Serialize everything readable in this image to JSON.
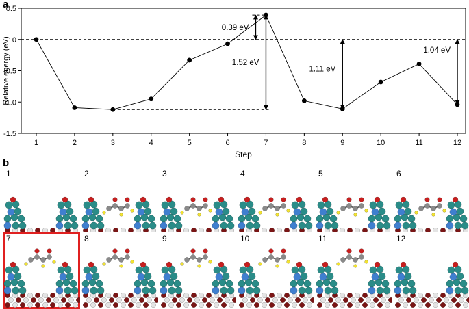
{
  "panel_a_label": "a",
  "panel_b_label": "b",
  "chart_data": {
    "type": "line",
    "xlabel": "Step",
    "ylabel": "Relative energy (eV)",
    "x": [
      1,
      2,
      3,
      4,
      5,
      6,
      7,
      8,
      9,
      10,
      11,
      12
    ],
    "y": [
      0,
      -1.09,
      -1.12,
      -0.95,
      -0.33,
      -0.07,
      0.39,
      -0.98,
      -1.11,
      -0.68,
      -0.39,
      -1.04
    ],
    "xlim": [
      1,
      12
    ],
    "ylim": [
      -1.5,
      0.5
    ],
    "yticks": [
      0.5,
      0,
      -0.5,
      -1.0,
      -1.5
    ],
    "ytick_labels": [
      "0.5",
      "0",
      "-0.5",
      "-1.0",
      "-1.5"
    ],
    "xticks": [
      1,
      2,
      3,
      4,
      5,
      6,
      7,
      8,
      9,
      10,
      11,
      12
    ],
    "reference_line": 0,
    "grid": false,
    "legend": "none",
    "annotations": [
      {
        "text": "0.39 eV",
        "from_step": 7,
        "y_from": 0,
        "y_to": 0.39
      },
      {
        "text": "1.52 eV",
        "from_step": 7,
        "y_from": -1.12,
        "y_to": 0.39
      },
      {
        "text": "1.11 eV",
        "from_step": 9,
        "y_from": -1.11,
        "y_to": 0
      },
      {
        "text": "1.04 eV",
        "from_step": 12,
        "y_from": -1.04,
        "y_to": 0
      }
    ]
  },
  "structures": [
    {
      "label": "1",
      "highlight": false,
      "adsorbate": "none"
    },
    {
      "label": "2",
      "highlight": false,
      "adsorbate": "bound"
    },
    {
      "label": "3",
      "highlight": false,
      "adsorbate": "bound"
    },
    {
      "label": "4",
      "highlight": false,
      "adsorbate": "bound"
    },
    {
      "label": "5",
      "highlight": false,
      "adsorbate": "bound"
    },
    {
      "label": "6",
      "highlight": false,
      "adsorbate": "bound"
    },
    {
      "label": "7",
      "highlight": true,
      "adsorbate": "free"
    },
    {
      "label": "8",
      "highlight": false,
      "adsorbate": "free"
    },
    {
      "label": "9",
      "highlight": false,
      "adsorbate": "free"
    },
    {
      "label": "10",
      "highlight": false,
      "adsorbate": "free"
    },
    {
      "label": "11",
      "highlight": false,
      "adsorbate": "free"
    },
    {
      "label": "12",
      "highlight": false,
      "adsorbate": "none"
    }
  ],
  "colors": {
    "line": "#000000",
    "highlight_box": "#e02020",
    "teal_atom": "#2a8c88",
    "blue_atom": "#3f7fcf",
    "red_atom": "#c81e1e",
    "dark_red_atom": "#7a1515",
    "white_atom": "#e4e4e4",
    "grey_atom": "#8a8a8a",
    "yellow_atom": "#f2e230"
  }
}
